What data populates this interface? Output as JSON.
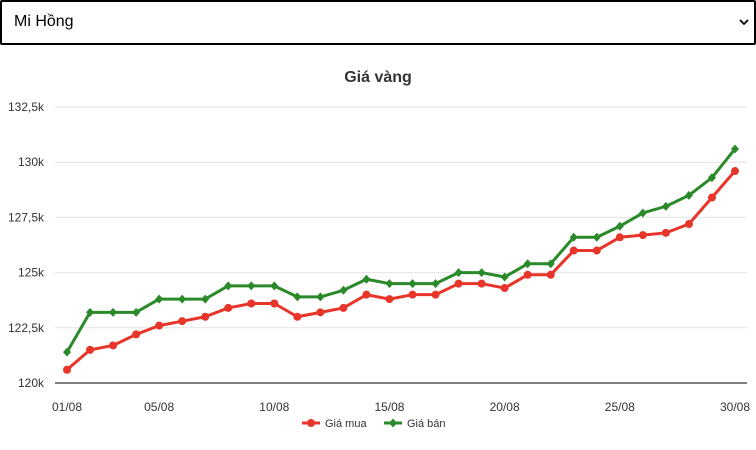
{
  "selector": {
    "selected": "Mi Hồng",
    "icon": "chevron-down-icon"
  },
  "chart_data": {
    "type": "line",
    "title": "Giá vàng",
    "x": [
      "01/08",
      "02/08",
      "03/08",
      "04/08",
      "05/08",
      "06/08",
      "07/08",
      "08/08",
      "09/08",
      "10/08",
      "11/08",
      "12/08",
      "13/08",
      "14/08",
      "15/08",
      "16/08",
      "17/08",
      "18/08",
      "19/08",
      "20/08",
      "21/08",
      "22/08",
      "23/08",
      "24/08",
      "25/08",
      "26/08",
      "27/08",
      "28/08",
      "29/08",
      "30/08"
    ],
    "x_tick_labels": [
      "01/08",
      "05/08",
      "10/08",
      "15/08",
      "20/08",
      "25/08",
      "30/08"
    ],
    "y_tick_labels": [
      "120k",
      "122,5k",
      "125k",
      "127,5k",
      "130k",
      "132,5k"
    ],
    "y_ticks": [
      120000,
      122500,
      125000,
      127500,
      130000,
      132500
    ],
    "ylim": [
      120000,
      133000
    ],
    "grid": true,
    "legend": "bottom",
    "series": [
      {
        "name": "Giá mua",
        "color": "#e8352a",
        "marker": "circle",
        "values": [
          120600,
          121500,
          121700,
          122200,
          122600,
          122800,
          123000,
          123400,
          123600,
          123600,
          123000,
          123200,
          123400,
          124000,
          123800,
          124000,
          124000,
          124500,
          124500,
          124300,
          124900,
          124900,
          126000,
          126000,
          126600,
          126700,
          126800,
          127200,
          128400,
          129600
        ]
      },
      {
        "name": "Giá bán",
        "color": "#2a8a2a",
        "marker": "diamond",
        "values": [
          121400,
          123200,
          123200,
          123200,
          123800,
          123800,
          123800,
          124400,
          124400,
          124400,
          123900,
          123900,
          124200,
          124700,
          124500,
          124500,
          124500,
          125000,
          125000,
          124800,
          125400,
          125400,
          126600,
          126600,
          127100,
          127700,
          128000,
          128500,
          129300,
          130600
        ]
      }
    ]
  }
}
